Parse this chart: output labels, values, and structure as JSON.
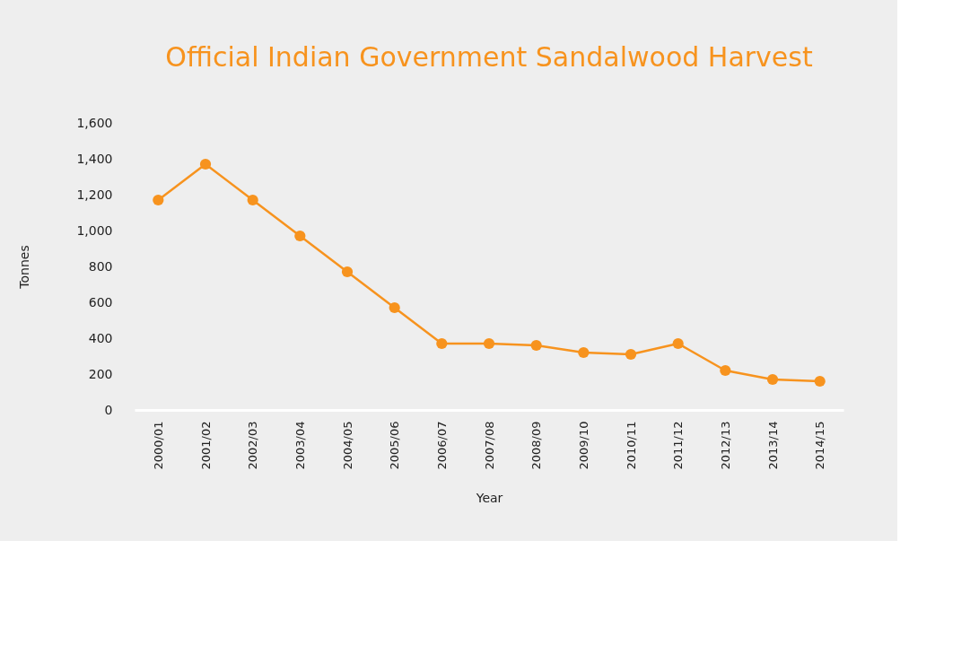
{
  "chart_data": {
    "type": "line",
    "title": "Official Indian Government Sandalwood Harvest",
    "xlabel": "Year",
    "ylabel": "Tonnes",
    "categories": [
      "2000/01",
      "2001/02",
      "2002/03",
      "2003/04",
      "2004/05",
      "2005/06",
      "2006/07",
      "2007/08",
      "2008/09",
      "2009/10",
      "2010/11",
      "2011/12",
      "2012/13",
      "2013/14",
      "2014/15"
    ],
    "series": [
      {
        "color": "#f7931e",
        "values": [
          1170,
          1370,
          1170,
          970,
          770,
          570,
          370,
          370,
          360,
          320,
          310,
          370,
          220,
          170,
          160
        ]
      }
    ],
    "ylim": [
      0,
      1600
    ],
    "yticks": [
      {
        "value": 0,
        "label": "0"
      },
      {
        "value": 200,
        "label": "200"
      },
      {
        "value": 400,
        "label": "400"
      },
      {
        "value": 600,
        "label": "600"
      },
      {
        "value": 800,
        "label": "800"
      },
      {
        "value": 1000,
        "label": "1,000"
      },
      {
        "value": 1200,
        "label": "1,200"
      },
      {
        "value": 1400,
        "label": "1,400"
      },
      {
        "value": 1600,
        "label": "1,600"
      }
    ],
    "grid": false,
    "marker": "circle",
    "line_style": "solid"
  }
}
